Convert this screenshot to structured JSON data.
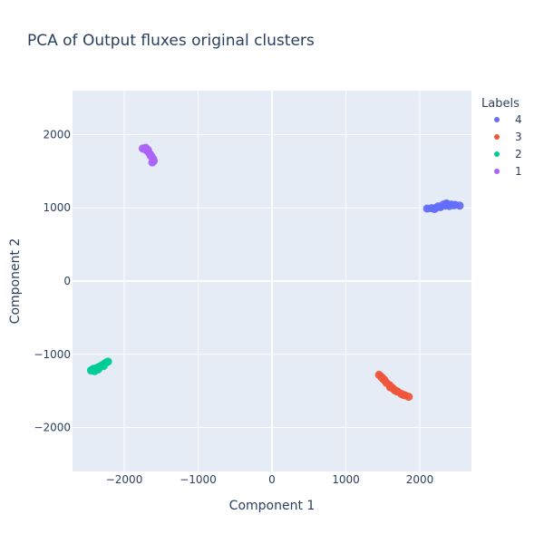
{
  "chart_data": {
    "type": "scatter",
    "title": "PCA of Output fluxes original clusters",
    "xlabel": "Component 1",
    "ylabel": "Component 2",
    "xlim": [
      -2700,
      2700
    ],
    "ylim": [
      -2600,
      2600
    ],
    "xticks": [
      -2000,
      -1000,
      0,
      1000,
      2000
    ],
    "yticks": [
      -2000,
      -1000,
      0,
      1000,
      2000
    ],
    "xtick_labels": [
      "−2000",
      "−1000",
      "0",
      "1000",
      "2000"
    ],
    "ytick_labels": [
      "−2000",
      "−1000",
      "0",
      "1000",
      "2000"
    ],
    "grid": true,
    "legend_title": "Labels",
    "legend_position": "top-right",
    "series": [
      {
        "name": "4",
        "color": "#636efa",
        "points": [
          [
            2100,
            990
          ],
          [
            2160,
            995
          ],
          [
            2220,
            1000
          ],
          [
            2280,
            1010
          ],
          [
            2340,
            1030
          ],
          [
            2380,
            1050
          ],
          [
            2430,
            1045
          ],
          [
            2480,
            1040
          ],
          [
            2540,
            1030
          ],
          [
            2250,
            1020
          ],
          [
            2320,
            1045
          ],
          [
            2400,
            1025
          ],
          [
            2200,
            985
          ],
          [
            2460,
            1035
          ],
          [
            2360,
            1060
          ]
        ]
      },
      {
        "name": "3",
        "color": "#ef553b",
        "points": [
          [
            1450,
            -1280
          ],
          [
            1480,
            -1310
          ],
          [
            1520,
            -1350
          ],
          [
            1550,
            -1390
          ],
          [
            1590,
            -1420
          ],
          [
            1630,
            -1460
          ],
          [
            1660,
            -1490
          ],
          [
            1700,
            -1510
          ],
          [
            1750,
            -1540
          ],
          [
            1800,
            -1560
          ],
          [
            1850,
            -1580
          ],
          [
            1500,
            -1330
          ],
          [
            1600,
            -1450
          ],
          [
            1680,
            -1500
          ],
          [
            1780,
            -1555
          ]
        ]
      },
      {
        "name": "2",
        "color": "#00cc96",
        "points": [
          [
            -2450,
            -1220
          ],
          [
            -2420,
            -1200
          ],
          [
            -2380,
            -1190
          ],
          [
            -2340,
            -1170
          ],
          [
            -2300,
            -1150
          ],
          [
            -2270,
            -1130
          ],
          [
            -2240,
            -1110
          ],
          [
            -2220,
            -1100
          ],
          [
            -2400,
            -1230
          ],
          [
            -2350,
            -1205
          ],
          [
            -2280,
            -1160
          ],
          [
            -2430,
            -1210
          ]
        ]
      },
      {
        "name": "1",
        "color": "#ab63fa",
        "points": [
          [
            -1750,
            1810
          ],
          [
            -1710,
            1820
          ],
          [
            -1680,
            1790
          ],
          [
            -1670,
            1760
          ],
          [
            -1650,
            1730
          ],
          [
            -1630,
            1700
          ],
          [
            -1610,
            1670
          ],
          [
            -1600,
            1640
          ],
          [
            -1620,
            1620
          ],
          [
            -1690,
            1780
          ],
          [
            -1640,
            1710
          ],
          [
            -1720,
            1800
          ]
        ]
      }
    ]
  }
}
